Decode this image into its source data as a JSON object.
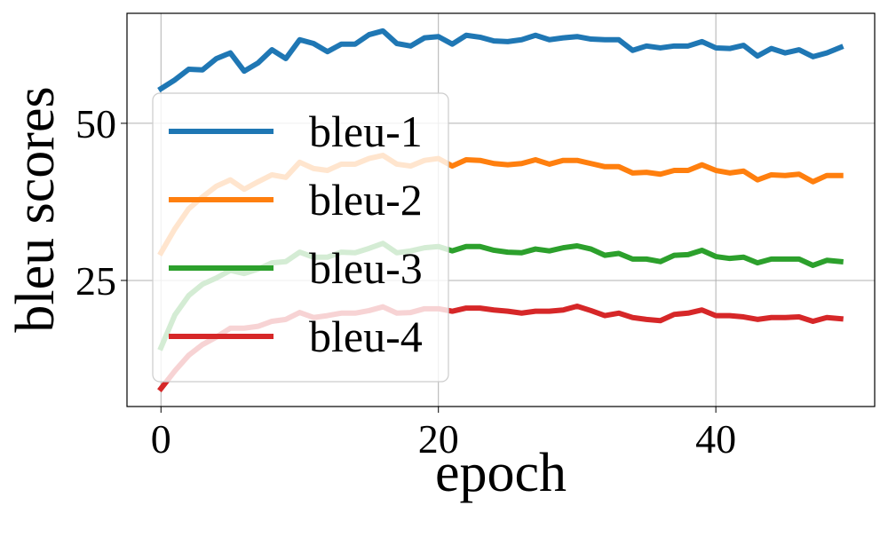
{
  "chart_data": {
    "type": "line",
    "x_label": "epoch",
    "y_label": "bleu scores",
    "x": [
      0,
      1,
      2,
      3,
      4,
      5,
      6,
      7,
      8,
      9,
      10,
      11,
      12,
      13,
      14,
      15,
      16,
      17,
      18,
      19,
      20,
      21,
      22,
      23,
      24,
      25,
      26,
      27,
      28,
      29,
      30,
      31,
      32,
      33,
      34,
      35,
      36,
      37,
      38,
      39,
      40,
      41,
      42,
      43,
      44,
      45,
      46,
      47,
      48,
      49
    ],
    "series": [
      {
        "name": "bleu-1",
        "color": "#1f77b4",
        "values": [
          55.5,
          56.9,
          58.6,
          58.5,
          60.3,
          61.2,
          58.3,
          59.6,
          61.7,
          60.3,
          63.3,
          62.7,
          61.4,
          62.6,
          62.6,
          64.1,
          64.7,
          62.7,
          62.3,
          63.6,
          63.8,
          62.6,
          64.0,
          63.7,
          63.1,
          63.0,
          63.3,
          64.0,
          63.3,
          63.6,
          63.8,
          63.4,
          63.3,
          63.3,
          61.6,
          62.3,
          62.0,
          62.3,
          62.3,
          63.0,
          62.0,
          61.9,
          62.4,
          60.7,
          61.9,
          61.2,
          61.7,
          60.6,
          61.2,
          62.1
        ]
      },
      {
        "name": "bleu-2",
        "color": "#ff7f0e",
        "values": [
          29.4,
          33.2,
          36.4,
          38.3,
          40.0,
          41.0,
          39.5,
          40.7,
          41.8,
          41.4,
          43.8,
          42.8,
          42.5,
          43.5,
          43.5,
          44.4,
          44.9,
          43.5,
          43.2,
          44.1,
          44.4,
          43.2,
          44.2,
          44.1,
          43.6,
          43.4,
          43.6,
          44.2,
          43.5,
          44.1,
          44.1,
          43.6,
          43.1,
          43.1,
          42.1,
          42.2,
          41.9,
          42.5,
          42.5,
          43.4,
          42.5,
          42.1,
          42.4,
          41.0,
          41.8,
          41.7,
          41.9,
          40.7,
          41.7,
          41.7
        ]
      },
      {
        "name": "bleu-3",
        "color": "#2ca02c",
        "values": [
          14.3,
          19.5,
          22.6,
          24.4,
          25.4,
          26.6,
          26.1,
          26.8,
          27.8,
          28.0,
          29.5,
          28.7,
          28.7,
          29.5,
          29.4,
          30.1,
          30.9,
          29.4,
          29.7,
          30.2,
          30.4,
          29.7,
          30.4,
          30.4,
          29.8,
          29.5,
          29.4,
          30.0,
          29.7,
          30.2,
          30.5,
          30.0,
          29.0,
          29.3,
          28.4,
          28.4,
          28.0,
          29.0,
          29.1,
          29.8,
          28.8,
          28.5,
          28.7,
          27.8,
          28.4,
          28.4,
          28.4,
          27.4,
          28.2,
          28.0
        ]
      },
      {
        "name": "bleu-4",
        "color": "#d62728",
        "values": [
          7.8,
          10.6,
          13.1,
          14.8,
          16.0,
          17.4,
          17.4,
          17.7,
          18.5,
          18.8,
          19.9,
          19.1,
          19.4,
          19.8,
          19.8,
          20.2,
          20.8,
          19.8,
          19.9,
          20.5,
          20.5,
          20.1,
          20.6,
          20.6,
          20.3,
          20.1,
          19.8,
          20.1,
          20.1,
          20.3,
          20.9,
          20.2,
          19.4,
          19.8,
          19.1,
          18.8,
          18.6,
          19.6,
          19.8,
          20.3,
          19.4,
          19.4,
          19.2,
          18.8,
          19.1,
          19.1,
          19.2,
          18.5,
          19.1,
          18.9
        ]
      }
    ],
    "xlim": [
      -2.45,
      51.45
    ],
    "ylim": [
      4.94,
      67.5
    ],
    "xticks": [
      0,
      20,
      40
    ],
    "yticks": [
      25,
      50
    ],
    "grid": true,
    "legend": "upper left"
  }
}
